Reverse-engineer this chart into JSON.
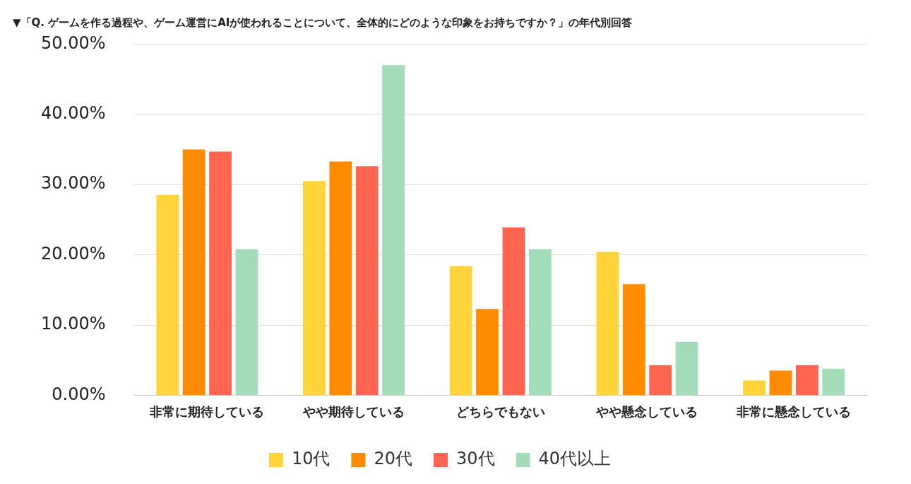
{
  "chart_data": {
    "type": "bar",
    "title": "▼「Q. ゲームを作る過程や、ゲーム運営にAIが使われることについて、全体的にどのような印象をお持ちですか？」の年代別回答",
    "categories": [
      "非常に期待している",
      "やや期待している",
      "どちらでもない",
      "やや懸念している",
      "非常に懸念している"
    ],
    "series": [
      {
        "name": "10代",
        "color": "#ffd43b",
        "values": [
          28.5,
          30.5,
          18.4,
          20.4,
          2.1
        ]
      },
      {
        "name": "20代",
        "color": "#ff8c00",
        "values": [
          35.0,
          33.3,
          12.3,
          15.8,
          3.5
        ]
      },
      {
        "name": "30代",
        "color": "#ff6550",
        "values": [
          34.7,
          32.6,
          23.9,
          4.3,
          4.3
        ]
      },
      {
        "name": "40代以上",
        "color": "#a3dcb9",
        "values": [
          20.8,
          47.0,
          20.8,
          7.6,
          3.8
        ]
      }
    ],
    "ylim": [
      0,
      50
    ],
    "yticks": [
      {
        "value": 0,
        "label": "0.00%"
      },
      {
        "value": 10,
        "label": "10.00%"
      },
      {
        "value": 20,
        "label": "20.00%"
      },
      {
        "value": 30,
        "label": "30.00%"
      },
      {
        "value": 40,
        "label": "40.00%"
      },
      {
        "value": 50,
        "label": "50.00%"
      }
    ],
    "grid": "y",
    "legend": "bottom"
  }
}
